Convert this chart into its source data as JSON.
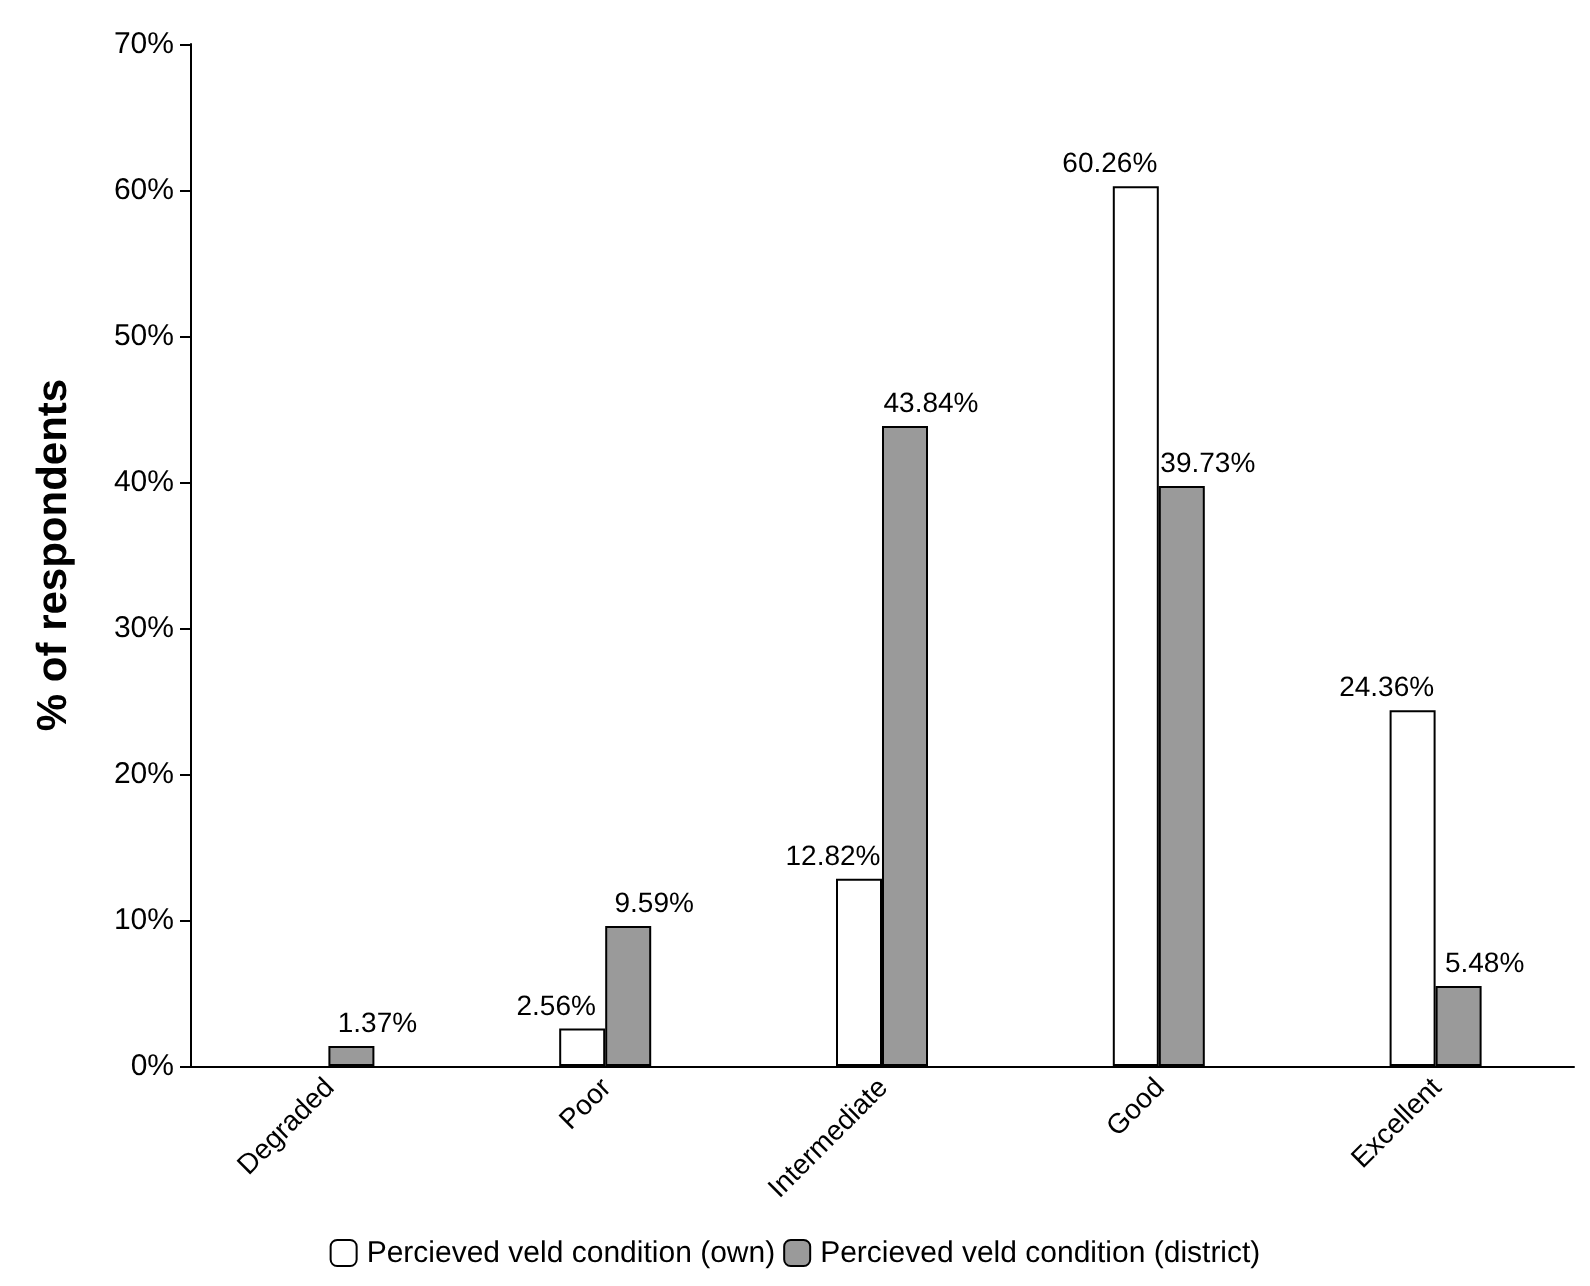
{
  "chart_data": {
    "type": "bar",
    "ylabel": "% of respondents",
    "categories": [
      "Degraded",
      "Poor",
      "Intermediate",
      "Good",
      "Excellent"
    ],
    "series": [
      {
        "name": "Percieved veld condition (own)",
        "color": "#ffffff",
        "values": [
          null,
          2.56,
          12.82,
          60.26,
          24.36
        ],
        "value_labels": [
          null,
          "2.56%",
          "12.82%",
          "60.26%",
          "24.36%"
        ]
      },
      {
        "name": "Percieved veld condition (district)",
        "color": "#9a9a9a",
        "values": [
          1.37,
          9.59,
          43.84,
          39.73,
          5.48
        ],
        "value_labels": [
          "1.37%",
          "9.59%",
          "43.84%",
          "39.73%",
          "5.48%"
        ]
      }
    ],
    "ylim": [
      0,
      70
    ],
    "yticks": [
      {
        "value": 0,
        "label": "0%"
      },
      {
        "value": 10,
        "label": "10%"
      },
      {
        "value": 20,
        "label": "20%"
      },
      {
        "value": 30,
        "label": "30%"
      },
      {
        "value": 40,
        "label": "40%"
      },
      {
        "value": 50,
        "label": "50%"
      },
      {
        "value": 60,
        "label": "60%"
      },
      {
        "value": 70,
        "label": "70%"
      }
    ],
    "grid": false,
    "legend": "bottom"
  }
}
